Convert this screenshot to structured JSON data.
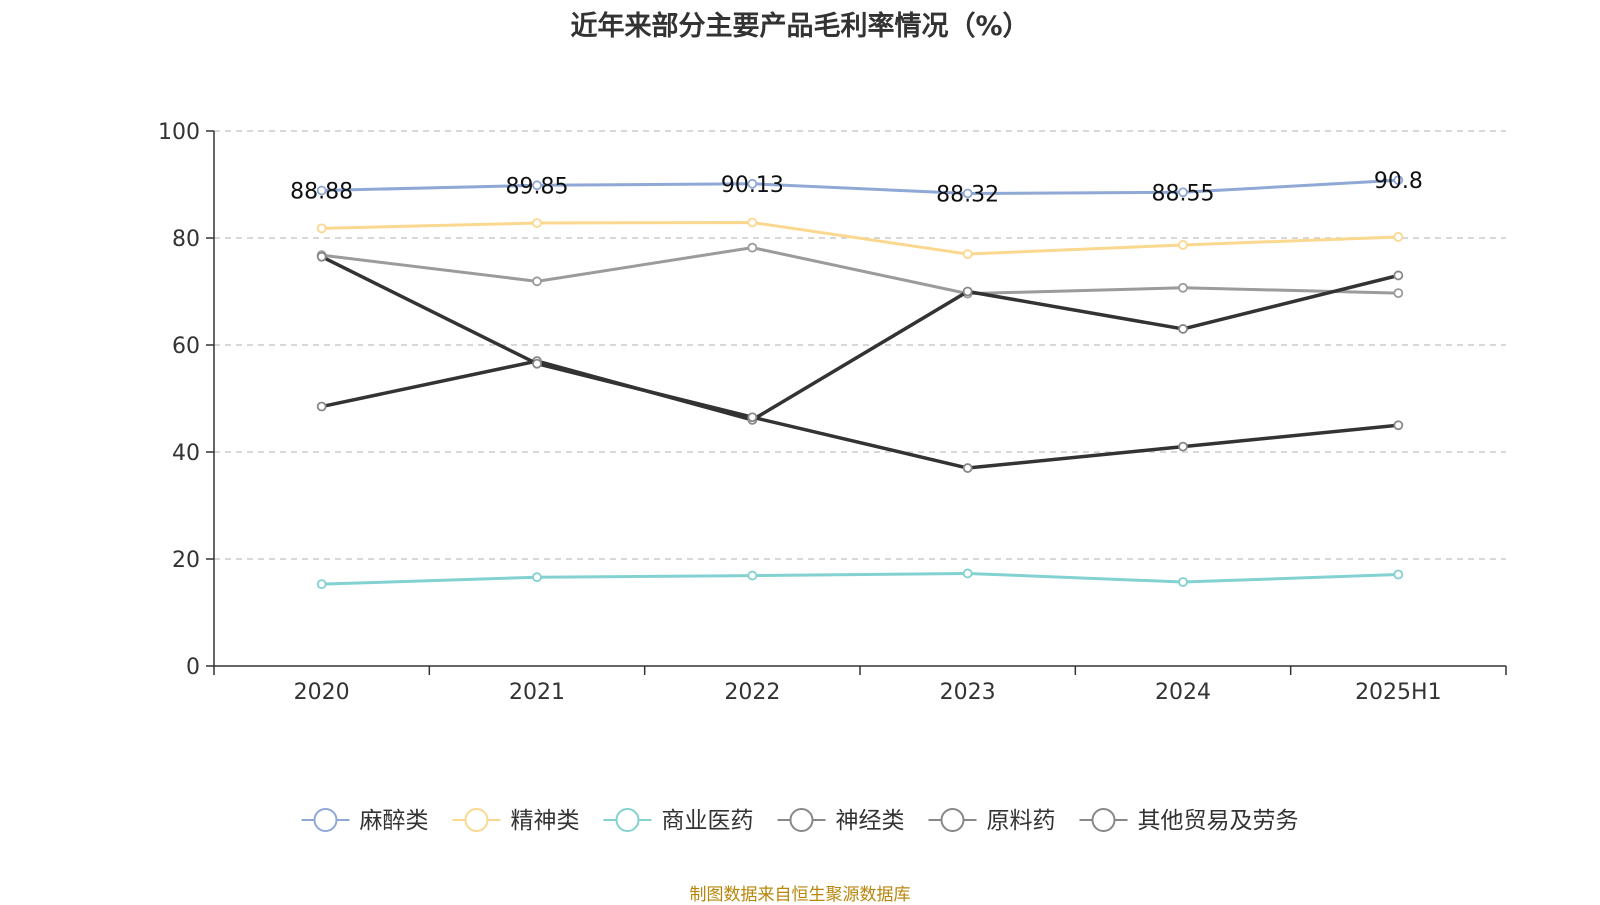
{
  "chart_data": {
    "type": "line",
    "title": "近年来部分主要产品毛利率情况（%）",
    "categories": [
      "2020",
      "2021",
      "2022",
      "2023",
      "2024",
      "2025H1"
    ],
    "ylim": [
      0,
      100
    ],
    "yticks": [
      0,
      20,
      40,
      60,
      80,
      100
    ],
    "grid": true,
    "legend_position": "bottom",
    "series": [
      {
        "name": "麻醉类",
        "color": "#8fa8d6",
        "width": 3,
        "values": [
          88.88,
          89.85,
          90.13,
          88.32,
          88.55,
          90.8
        ],
        "labels": [
          "88.88",
          "89.85",
          "90.13",
          "88.32",
          "88.55",
          "90.8"
        ]
      },
      {
        "name": "精神类",
        "color": "#fbd88f",
        "width": 3,
        "values": [
          81.8,
          82.8,
          82.9,
          77.0,
          78.7,
          80.2
        ]
      },
      {
        "name": "商业医药",
        "color": "#83d1d1",
        "width": 3,
        "values": [
          15.3,
          16.6,
          16.9,
          17.3,
          15.7,
          17.1
        ]
      },
      {
        "name": "神经类",
        "color": "#9b9b9b",
        "width": 3,
        "values": [
          76.8,
          71.9,
          78.2,
          69.6,
          70.7,
          69.7
        ]
      },
      {
        "name": "原料药",
        "color": "#333333",
        "width": 3.5,
        "values": [
          48.5,
          57.0,
          46.0,
          70.0,
          63.0,
          73.0
        ]
      },
      {
        "name": "其他贸易及劳务",
        "color": "#333333",
        "width": 3.5,
        "values": [
          76.5,
          56.5,
          46.5,
          37.0,
          41.0,
          45.0
        ]
      }
    ],
    "legend_colors": [
      "#8fa8d6",
      "#fbd88f",
      "#83d1d1",
      "#888888",
      "#888888",
      "#888888"
    ]
  },
  "source_text": "制图数据来自恒生聚源数据库"
}
